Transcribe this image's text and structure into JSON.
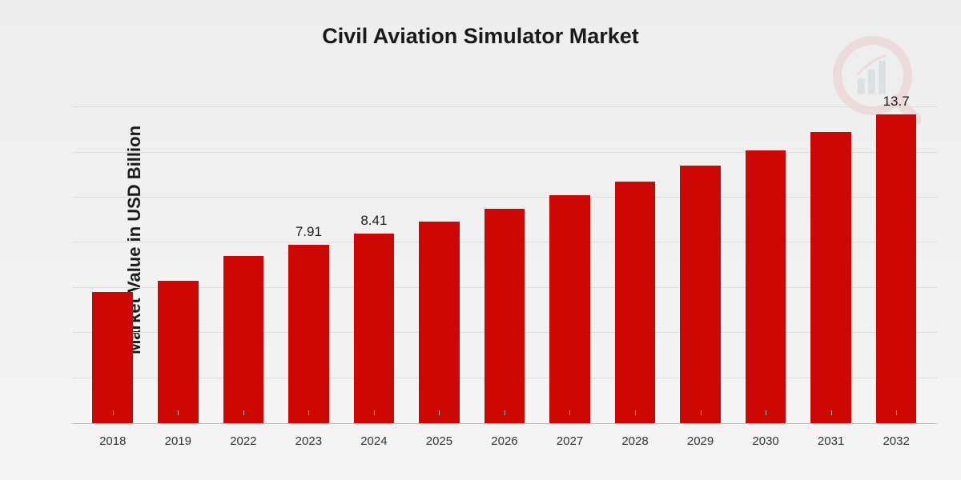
{
  "chart": {
    "type": "bar",
    "title": "Civil Aviation Simulator Market",
    "title_fontsize": 27,
    "ylabel": "Market Value in USD Billion",
    "ylabel_fontsize": 22,
    "categories": [
      "2018",
      "2019",
      "2022",
      "2023",
      "2024",
      "2025",
      "2026",
      "2027",
      "2028",
      "2029",
      "2030",
      "2031",
      "2032"
    ],
    "values": [
      5.8,
      6.3,
      7.4,
      7.91,
      8.41,
      8.95,
      9.5,
      10.1,
      10.7,
      11.4,
      12.1,
      12.9,
      13.7
    ],
    "value_labels": [
      "",
      "",
      "",
      "7.91",
      "8.41",
      "",
      "",
      "",
      "",
      "",
      "",
      "",
      "13.7"
    ],
    "bar_color": "#cc0704",
    "ymax": 14.5,
    "background_gradient": [
      "#ededed",
      "#f5f5f5"
    ],
    "grid_color": "#dddddd",
    "axis_color": "#bbbbbb",
    "xtick_fontsize": 15,
    "value_label_fontsize": 17,
    "bar_width_ratio": 0.62,
    "gridlines_y": [
      2,
      4,
      6,
      8,
      10,
      12,
      14
    ]
  },
  "watermark": {
    "name": "logo-icon",
    "ring_color": "#cc0704",
    "bars_color": "#0b3a6b",
    "opacity": 0.08
  }
}
